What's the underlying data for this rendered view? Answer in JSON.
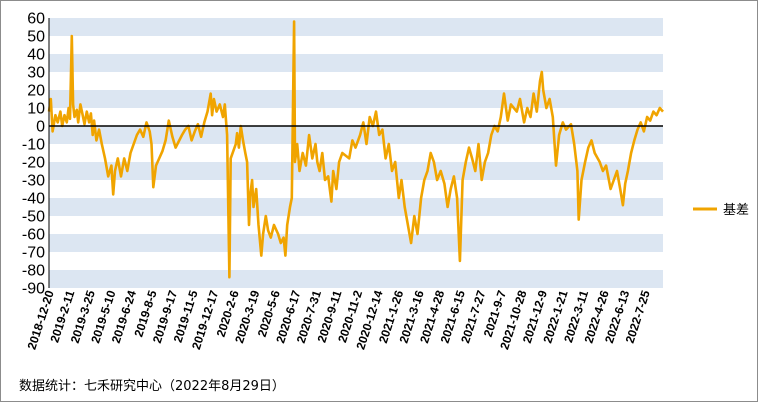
{
  "chart_data": {
    "type": "line",
    "title": "",
    "xlabel": "",
    "ylabel": "",
    "ylim": [
      -90,
      60
    ],
    "y_ticks": [
      60,
      50,
      40,
      30,
      20,
      10,
      0,
      -10,
      -20,
      -30,
      -40,
      -50,
      -60,
      -70,
      -80,
      -90
    ],
    "x_tick_labels": [
      "2018-12-20",
      "2019-2-11",
      "2019-3-25",
      "2019-5-10",
      "2019-6-24",
      "2019-8-5",
      "2019-9-17",
      "2019-11-5",
      "2019-12-17",
      "2020-2-6",
      "2020-3-19",
      "2020-5-6",
      "2020-6-17",
      "2020-7-31",
      "2020-9-11",
      "2020-11-2",
      "2020-12-14",
      "2021-1-26",
      "2021-3-16",
      "2021-4-28",
      "2021-6-15",
      "2021-7-27",
      "2021-9-7",
      "2021-10-28",
      "2021-12-9",
      "2022-1-21",
      "2022-3-11",
      "2022-4-26",
      "2022-6-13",
      "2022-7-25"
    ],
    "x_range": [
      "2018-12-20",
      "2022-08-29"
    ],
    "grid": "horizontal alternating bands",
    "legend_position": "right",
    "series": [
      {
        "name": "基差",
        "color": "#f0a400",
        "points": [
          [
            "2018-12-20",
            8
          ],
          [
            "2018-12-24",
            15
          ],
          [
            "2018-12-28",
            -3
          ],
          [
            "2019-01-03",
            6
          ],
          [
            "2019-01-08",
            2
          ],
          [
            "2019-01-14",
            8
          ],
          [
            "2019-01-18",
            0
          ],
          [
            "2019-01-23",
            6
          ],
          [
            "2019-01-28",
            2
          ],
          [
            "2019-02-01",
            10
          ],
          [
            "2019-02-04",
            4
          ],
          [
            "2019-02-08",
            50
          ],
          [
            "2019-02-11",
            12
          ],
          [
            "2019-02-14",
            5
          ],
          [
            "2019-02-19",
            9
          ],
          [
            "2019-02-22",
            2
          ],
          [
            "2019-02-27",
            12
          ],
          [
            "2019-03-04",
            6
          ],
          [
            "2019-03-08",
            1
          ],
          [
            "2019-03-13",
            8
          ],
          [
            "2019-03-18",
            2
          ],
          [
            "2019-03-22",
            7
          ],
          [
            "2019-03-26",
            -5
          ],
          [
            "2019-03-29",
            3
          ],
          [
            "2019-04-03",
            -8
          ],
          [
            "2019-04-09",
            -2
          ],
          [
            "2019-04-15",
            -10
          ],
          [
            "2019-04-22",
            -18
          ],
          [
            "2019-04-29",
            -28
          ],
          [
            "2019-05-06",
            -22
          ],
          [
            "2019-05-10",
            -38
          ],
          [
            "2019-05-14",
            -25
          ],
          [
            "2019-05-20",
            -18
          ],
          [
            "2019-05-27",
            -28
          ],
          [
            "2019-06-03",
            -18
          ],
          [
            "2019-06-10",
            -25
          ],
          [
            "2019-06-17",
            -15
          ],
          [
            "2019-06-24",
            -10
          ],
          [
            "2019-07-01",
            -5
          ],
          [
            "2019-07-08",
            -2
          ],
          [
            "2019-07-15",
            -6
          ],
          [
            "2019-07-22",
            2
          ],
          [
            "2019-07-29",
            -3
          ],
          [
            "2019-08-02",
            -10
          ],
          [
            "2019-08-06",
            -34
          ],
          [
            "2019-08-12",
            -22
          ],
          [
            "2019-08-19",
            -18
          ],
          [
            "2019-08-26",
            -14
          ],
          [
            "2019-09-02",
            -8
          ],
          [
            "2019-09-09",
            3
          ],
          [
            "2019-09-17",
            -6
          ],
          [
            "2019-09-24",
            -12
          ],
          [
            "2019-10-08",
            -5
          ],
          [
            "2019-10-15",
            -2
          ],
          [
            "2019-10-22",
            0
          ],
          [
            "2019-10-29",
            -8
          ],
          [
            "2019-11-05",
            -3
          ],
          [
            "2019-11-12",
            1
          ],
          [
            "2019-11-19",
            -6
          ],
          [
            "2019-11-26",
            2
          ],
          [
            "2019-12-03",
            8
          ],
          [
            "2019-12-10",
            18
          ],
          [
            "2019-12-13",
            6
          ],
          [
            "2019-12-17",
            15
          ],
          [
            "2019-12-23",
            8
          ],
          [
            "2019-12-30",
            12
          ],
          [
            "2020-01-06",
            5
          ],
          [
            "2020-01-10",
            12
          ],
          [
            "2020-01-15",
            -5
          ],
          [
            "2020-01-20",
            -84
          ],
          [
            "2020-01-23",
            -18
          ],
          [
            "2020-02-03",
            -10
          ],
          [
            "2020-02-06",
            -4
          ],
          [
            "2020-02-10",
            -12
          ],
          [
            "2020-02-14",
            0
          ],
          [
            "2020-02-19",
            -8
          ],
          [
            "2020-02-24",
            -15
          ],
          [
            "2020-02-28",
            -20
          ],
          [
            "2020-03-03",
            -55
          ],
          [
            "2020-03-06",
            -38
          ],
          [
            "2020-03-10",
            -30
          ],
          [
            "2020-03-13",
            -45
          ],
          [
            "2020-03-19",
            -35
          ],
          [
            "2020-03-24",
            -55
          ],
          [
            "2020-03-30",
            -72
          ],
          [
            "2020-04-03",
            -60
          ],
          [
            "2020-04-09",
            -50
          ],
          [
            "2020-04-14",
            -58
          ],
          [
            "2020-04-20",
            -62
          ],
          [
            "2020-04-27",
            -55
          ],
          [
            "2020-05-06",
            -60
          ],
          [
            "2020-05-12",
            -65
          ],
          [
            "2020-05-18",
            -62
          ],
          [
            "2020-05-22",
            -72
          ],
          [
            "2020-05-26",
            -55
          ],
          [
            "2020-06-01",
            -45
          ],
          [
            "2020-06-05",
            -40
          ],
          [
            "2020-06-10",
            58
          ],
          [
            "2020-06-12",
            -20
          ],
          [
            "2020-06-17",
            -10
          ],
          [
            "2020-06-22",
            -25
          ],
          [
            "2020-06-29",
            -15
          ],
          [
            "2020-07-06",
            -22
          ],
          [
            "2020-07-13",
            -5
          ],
          [
            "2020-07-20",
            -18
          ],
          [
            "2020-07-27",
            -10
          ],
          [
            "2020-07-31",
            -20
          ],
          [
            "2020-08-05",
            -25
          ],
          [
            "2020-08-11",
            -15
          ],
          [
            "2020-08-17",
            -30
          ],
          [
            "2020-08-24",
            -28
          ],
          [
            "2020-08-31",
            -42
          ],
          [
            "2020-09-04",
            -25
          ],
          [
            "2020-09-11",
            -35
          ],
          [
            "2020-09-17",
            -20
          ],
          [
            "2020-09-24",
            -15
          ],
          [
            "2020-10-09",
            -18
          ],
          [
            "2020-10-16",
            -8
          ],
          [
            "2020-10-23",
            -12
          ],
          [
            "2020-11-02",
            -5
          ],
          [
            "2020-11-09",
            2
          ],
          [
            "2020-11-16",
            -10
          ],
          [
            "2020-11-23",
            5
          ],
          [
            "2020-11-30",
            0
          ],
          [
            "2020-12-07",
            8
          ],
          [
            "2020-12-14",
            -5
          ],
          [
            "2020-12-21",
            -2
          ],
          [
            "2020-12-28",
            -18
          ],
          [
            "2021-01-04",
            -10
          ],
          [
            "2021-01-11",
            -25
          ],
          [
            "2021-01-18",
            -20
          ],
          [
            "2021-01-26",
            -40
          ],
          [
            "2021-02-01",
            -30
          ],
          [
            "2021-02-08",
            -45
          ],
          [
            "2021-02-22",
            -65
          ],
          [
            "2021-03-01",
            -50
          ],
          [
            "2021-03-08",
            -60
          ],
          [
            "2021-03-16",
            -40
          ],
          [
            "2021-03-23",
            -30
          ],
          [
            "2021-03-30",
            -25
          ],
          [
            "2021-04-06",
            -15
          ],
          [
            "2021-04-13",
            -20
          ],
          [
            "2021-04-20",
            -30
          ],
          [
            "2021-04-28",
            -25
          ],
          [
            "2021-05-06",
            -32
          ],
          [
            "2021-05-13",
            -45
          ],
          [
            "2021-05-20",
            -35
          ],
          [
            "2021-05-27",
            -28
          ],
          [
            "2021-06-03",
            -40
          ],
          [
            "2021-06-09",
            -75
          ],
          [
            "2021-06-15",
            -30
          ],
          [
            "2021-06-22",
            -20
          ],
          [
            "2021-06-29",
            -12
          ],
          [
            "2021-07-06",
            -18
          ],
          [
            "2021-07-13",
            -25
          ],
          [
            "2021-07-20",
            -10
          ],
          [
            "2021-07-27",
            -30
          ],
          [
            "2021-08-03",
            -20
          ],
          [
            "2021-08-10",
            -15
          ],
          [
            "2021-08-17",
            -5
          ],
          [
            "2021-08-24",
            0
          ],
          [
            "2021-08-31",
            -3
          ],
          [
            "2021-09-07",
            5
          ],
          [
            "2021-09-14",
            18
          ],
          [
            "2021-09-22",
            3
          ],
          [
            "2021-09-29",
            12
          ],
          [
            "2021-10-12",
            8
          ],
          [
            "2021-10-19",
            15
          ],
          [
            "2021-10-28",
            2
          ],
          [
            "2021-11-04",
            10
          ],
          [
            "2021-11-11",
            5
          ],
          [
            "2021-11-18",
            18
          ],
          [
            "2021-11-25",
            8
          ],
          [
            "2021-12-02",
            25
          ],
          [
            "2021-12-06",
            30
          ],
          [
            "2021-12-09",
            20
          ],
          [
            "2021-12-16",
            10
          ],
          [
            "2021-12-23",
            15
          ],
          [
            "2021-12-30",
            5
          ],
          [
            "2022-01-06",
            -22
          ],
          [
            "2022-01-13",
            -5
          ],
          [
            "2022-01-21",
            2
          ],
          [
            "2022-01-28",
            -2
          ],
          [
            "2022-02-08",
            1
          ],
          [
            "2022-02-15",
            -10
          ],
          [
            "2022-02-22",
            -25
          ],
          [
            "2022-02-25",
            -52
          ],
          [
            "2022-03-03",
            -30
          ],
          [
            "2022-03-11",
            -20
          ],
          [
            "2022-03-18",
            -12
          ],
          [
            "2022-03-25",
            -8
          ],
          [
            "2022-04-01",
            -15
          ],
          [
            "2022-04-12",
            -20
          ],
          [
            "2022-04-19",
            -25
          ],
          [
            "2022-04-26",
            -22
          ],
          [
            "2022-05-06",
            -35
          ],
          [
            "2022-05-13",
            -30
          ],
          [
            "2022-05-20",
            -25
          ],
          [
            "2022-05-27",
            -35
          ],
          [
            "2022-06-02",
            -44
          ],
          [
            "2022-06-07",
            -32
          ],
          [
            "2022-06-13",
            -25
          ],
          [
            "2022-06-20",
            -15
          ],
          [
            "2022-06-27",
            -8
          ],
          [
            "2022-07-04",
            -2
          ],
          [
            "2022-07-11",
            2
          ],
          [
            "2022-07-18",
            -3
          ],
          [
            "2022-07-25",
            5
          ],
          [
            "2022-08-01",
            3
          ],
          [
            "2022-08-08",
            8
          ],
          [
            "2022-08-15",
            6
          ],
          [
            "2022-08-22",
            10
          ],
          [
            "2022-08-29",
            8
          ]
        ]
      }
    ]
  },
  "source_note": "数据统计：七禾研究中心（2022年8月29日）"
}
